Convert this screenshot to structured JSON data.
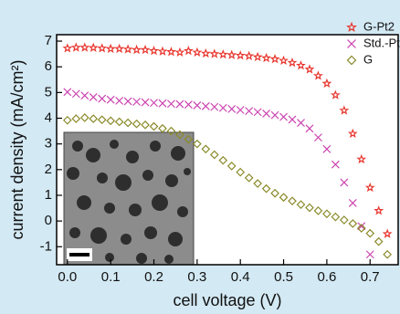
{
  "chart_data": {
    "type": "scatter",
    "x_label": "cell voltage (V)",
    "y_label": "current density (mA/cm²)",
    "xlim": [
      -0.025,
      0.765
    ],
    "ylim": [
      -1.7,
      7.25
    ],
    "xticks": [
      {
        "value": 0,
        "label": "0.0"
      },
      0.1,
      0.2,
      0.3,
      0.4,
      0.5,
      0.6,
      0.7
    ],
    "yticks": [
      -1,
      0,
      1,
      2,
      3,
      4,
      5,
      6,
      7
    ],
    "legend": "upper right",
    "series": [
      {
        "name": "G-Pt2",
        "color": "#e8362e",
        "marker": "star",
        "x": [
          0,
          0.02,
          0.04,
          0.06,
          0.08,
          0.1,
          0.12,
          0.14,
          0.16,
          0.18,
          0.2,
          0.22,
          0.24,
          0.26,
          0.28,
          0.3,
          0.32,
          0.34,
          0.36,
          0.38,
          0.4,
          0.42,
          0.44,
          0.46,
          0.48,
          0.5,
          0.52,
          0.54,
          0.56,
          0.58,
          0.6,
          0.62,
          0.64,
          0.66,
          0.68,
          0.7,
          0.72,
          0.74
        ],
        "values": [
          6.72,
          6.75,
          6.75,
          6.74,
          6.72,
          6.7,
          6.7,
          6.68,
          6.66,
          6.66,
          6.62,
          6.6,
          6.58,
          6.56,
          6.62,
          6.56,
          6.52,
          6.5,
          6.48,
          6.46,
          6.44,
          6.42,
          6.38,
          6.34,
          6.3,
          6.24,
          6.16,
          6.05,
          5.9,
          5.65,
          5.35,
          4.9,
          4.3,
          3.4,
          2.4,
          1.3,
          0.4,
          -0.5
        ]
      },
      {
        "name": "Std.-Pt",
        "color": "#cc44b0",
        "marker": "x",
        "x": [
          0,
          0.02,
          0.04,
          0.06,
          0.08,
          0.1,
          0.12,
          0.14,
          0.16,
          0.18,
          0.2,
          0.22,
          0.24,
          0.26,
          0.28,
          0.3,
          0.32,
          0.34,
          0.36,
          0.38,
          0.4,
          0.42,
          0.44,
          0.46,
          0.48,
          0.5,
          0.52,
          0.54,
          0.56,
          0.58,
          0.6,
          0.62,
          0.64,
          0.66,
          0.68,
          0.7
        ],
        "values": [
          5.02,
          4.95,
          4.88,
          4.82,
          4.76,
          4.72,
          4.68,
          4.66,
          4.64,
          4.62,
          4.6,
          4.58,
          4.56,
          4.55,
          4.53,
          4.5,
          4.47,
          4.44,
          4.4,
          4.36,
          4.32,
          4.28,
          4.24,
          4.18,
          4.12,
          4.05,
          3.95,
          3.82,
          3.6,
          3.25,
          2.8,
          2.2,
          1.5,
          0.7,
          -0.2,
          -1.3
        ]
      },
      {
        "name": "G",
        "color": "#8a8a2a",
        "marker": "diamond",
        "x": [
          0,
          0.02,
          0.04,
          0.06,
          0.08,
          0.1,
          0.12,
          0.14,
          0.16,
          0.18,
          0.2,
          0.22,
          0.24,
          0.26,
          0.28,
          0.3,
          0.32,
          0.34,
          0.36,
          0.38,
          0.4,
          0.42,
          0.44,
          0.46,
          0.48,
          0.5,
          0.52,
          0.54,
          0.56,
          0.58,
          0.6,
          0.62,
          0.64,
          0.66,
          0.68,
          0.7,
          0.72,
          0.74
        ],
        "values": [
          3.92,
          3.98,
          4.02,
          3.98,
          3.94,
          3.9,
          3.86,
          3.82,
          3.78,
          3.74,
          3.68,
          3.6,
          3.5,
          3.36,
          3.18,
          3.0,
          2.8,
          2.58,
          2.36,
          2.14,
          1.9,
          1.68,
          1.46,
          1.26,
          1.08,
          0.92,
          0.78,
          0.64,
          0.52,
          0.4,
          0.28,
          0.16,
          0.04,
          -0.1,
          -0.28,
          -0.48,
          -0.8,
          -1.3
        ]
      }
    ]
  }
}
